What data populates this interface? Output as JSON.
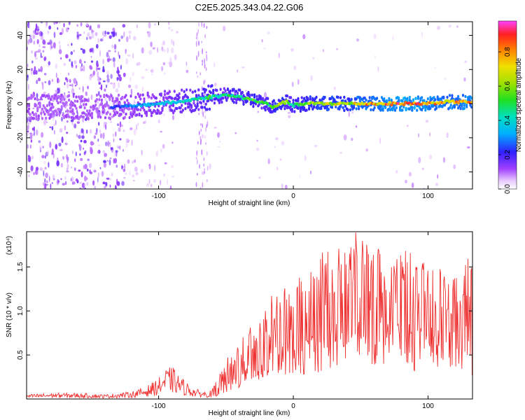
{
  "title": "C2E5.2025.343.04.22.G06",
  "chart_data": [
    {
      "type": "heatmap",
      "xlabel": "Height of straight line (km)",
      "ylabel": "Frequency (Hz)",
      "xlim": [
        -198,
        133
      ],
      "ylim": [
        -50,
        48
      ],
      "xticks": [
        -100,
        0,
        100
      ],
      "yticks": [
        -40,
        -20,
        0,
        20,
        40
      ],
      "colorbar": {
        "label": "Normalized spectral amplitude",
        "range": [
          0,
          0.98
        ],
        "ticks": [
          "0.0",
          "0.2",
          "0.4",
          "0.6",
          "0.8"
        ]
      },
      "ridge": {
        "x": [
          -130,
          -115,
          -100,
          -85,
          -70,
          -60,
          -50,
          -40,
          -30,
          -20,
          -15,
          -10,
          -5,
          0,
          10,
          20,
          30,
          40,
          50,
          60,
          70,
          80,
          90,
          100,
          110,
          120,
          130
        ],
        "y": [
          -2,
          -1,
          0,
          1,
          3,
          4,
          5,
          4,
          2,
          0,
          -2,
          0,
          1,
          -1,
          0,
          0,
          0,
          0,
          0,
          0,
          0,
          0,
          0,
          0,
          1,
          1,
          1
        ],
        "amplitude": [
          0.25,
          0.35,
          0.4,
          0.45,
          0.5,
          0.55,
          0.5,
          0.55,
          0.6,
          0.5,
          0.6,
          0.7,
          0.6,
          0.55,
          0.65,
          0.7,
          0.75,
          0.7,
          0.85,
          0.85,
          0.9,
          0.95,
          0.95,
          0.9,
          0.85,
          0.85,
          0.9
        ]
      }
    },
    {
      "type": "line",
      "xlabel": "Height of straight line (km)",
      "ylabel": "SNR (10 * v/v)",
      "y_multiplier": "(x10⁴)",
      "xlim": [
        -198,
        133
      ],
      "ylim": [
        0,
        1.9
      ],
      "xticks": [
        -100,
        0,
        100
      ],
      "yticks": [
        0.5,
        1.0,
        1.5
      ],
      "series": [
        {
          "name": "SNR",
          "color": "#ee3030",
          "x": [
            -198,
            -180,
            -160,
            -140,
            -120,
            -110,
            -100,
            -95,
            -90,
            -85,
            -80,
            -75,
            -70,
            -65,
            -60,
            -55,
            -50,
            -45,
            -40,
            -35,
            -30,
            -25,
            -20,
            -15,
            -10,
            -5,
            0,
            5,
            10,
            15,
            20,
            25,
            30,
            35,
            40,
            45,
            50,
            55,
            60,
            65,
            70,
            75,
            80,
            85,
            90,
            95,
            100,
            105,
            110,
            115,
            120,
            125,
            130,
            133
          ],
          "y": [
            0.03,
            0.04,
            0.04,
            0.03,
            0.05,
            0.08,
            0.14,
            0.2,
            0.22,
            0.16,
            0.12,
            0.08,
            0.06,
            0.05,
            0.06,
            0.12,
            0.2,
            0.28,
            0.35,
            0.42,
            0.5,
            0.55,
            0.6,
            0.68,
            0.72,
            0.8,
            0.65,
            0.75,
            0.8,
            0.9,
            0.85,
            0.95,
            1.0,
            1.05,
            1.1,
            1.2,
            1.1,
            1.3,
            1.05,
            1.2,
            1.0,
            1.1,
            1.05,
            1.15,
            0.9,
            1.0,
            1.1,
            0.95,
            1.0,
            0.9,
            0.95,
            0.85,
            1.2,
            0.6
          ],
          "envelope": [
            0.05,
            0.06,
            0.07,
            0.06,
            0.08,
            0.14,
            0.28,
            0.35,
            0.3,
            0.24,
            0.18,
            0.14,
            0.1,
            0.1,
            0.12,
            0.28,
            0.45,
            0.55,
            0.7,
            0.8,
            0.95,
            1.0,
            1.1,
            1.2,
            1.3,
            1.45,
            1.2,
            1.4,
            1.6,
            1.55,
            1.7,
            1.8,
            1.7,
            1.75,
            1.85,
            1.9,
            1.9,
            1.8,
            1.85,
            1.75,
            1.7,
            1.65,
            1.75,
            1.7,
            1.6,
            1.55,
            1.6,
            1.45,
            1.55,
            1.4,
            1.45,
            1.4,
            1.7,
            1.6
          ]
        }
      ]
    }
  ]
}
